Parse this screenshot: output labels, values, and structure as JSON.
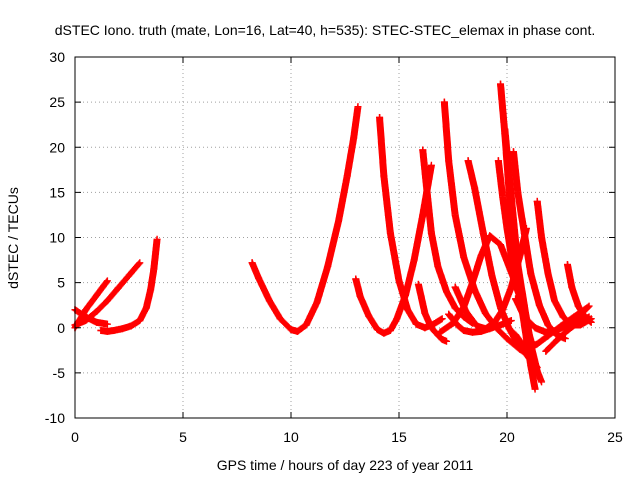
{
  "chart_data": {
    "type": "scatter",
    "title": "dSTEC Iono. truth (mate, Lon=16, Lat=40, h=535): STEC-STEC_elemax in phase cont.",
    "xlabel": "GPS time / hours of day 223 of year 2011",
    "ylabel": "dSTEC  / TECUs",
    "xlim": [
      0,
      25
    ],
    "ylim": [
      -10,
      30
    ],
    "xticks": [
      0,
      5,
      10,
      15,
      20,
      25
    ],
    "yticks": [
      -10,
      -5,
      0,
      5,
      10,
      15,
      20,
      25,
      30
    ],
    "grid": true,
    "legend": "none",
    "marker": "+",
    "color": "#ff0000",
    "series": [
      {
        "x": [
          0.0,
          0.5,
          1.0,
          1.5
        ],
        "y": [
          2.0,
          1.2,
          0.6,
          0.4
        ]
      },
      {
        "x": [
          0.0,
          0.5,
          1.0,
          1.5
        ],
        "y": [
          0.0,
          2.0,
          3.6,
          5.2
        ]
      },
      {
        "x": [
          0.0,
          0.5,
          1.0,
          1.5,
          2.0,
          2.5,
          3.0
        ],
        "y": [
          0.3,
          0.8,
          1.8,
          3.0,
          4.4,
          5.8,
          7.2
        ]
      },
      {
        "x": [
          1.2,
          1.5,
          1.8,
          2.2,
          2.6,
          3.0,
          3.3,
          3.5,
          3.65,
          3.8
        ],
        "y": [
          -0.3,
          -0.4,
          -0.3,
          -0.1,
          0.2,
          0.8,
          2.2,
          4.2,
          6.5,
          9.8
        ]
      },
      {
        "x": [
          8.2,
          8.5,
          9.0,
          9.5,
          10.0,
          10.3,
          10.7,
          11.2,
          11.7,
          12.2,
          12.6,
          12.9,
          13.1
        ],
        "y": [
          7.2,
          5.5,
          3.0,
          1.0,
          -0.2,
          -0.4,
          0.3,
          2.8,
          6.8,
          11.8,
          16.8,
          21.0,
          24.5
        ]
      },
      {
        "x": [
          13.0,
          13.2,
          13.6,
          14.0,
          14.3,
          14.6,
          14.9,
          15.3,
          15.7,
          16.1,
          16.5
        ],
        "y": [
          5.4,
          3.5,
          1.3,
          -0.2,
          -0.6,
          -0.3,
          1.0,
          3.6,
          7.5,
          12.5,
          18.0
        ]
      },
      {
        "x": [
          14.1,
          14.3,
          14.6,
          15.0,
          15.4,
          15.8,
          16.2,
          16.6,
          17.0
        ],
        "y": [
          23.3,
          16.8,
          10.5,
          5.2,
          2.0,
          0.4,
          0.0,
          0.4,
          1.0
        ]
      },
      {
        "x": [
          15.9,
          16.2,
          16.5,
          16.8,
          17.0,
          17.2
        ],
        "y": [
          4.8,
          1.6,
          0.0,
          -0.8,
          -1.3,
          -1.5
        ]
      },
      {
        "x": [
          16.1,
          16.3,
          16.5,
          16.8,
          17.2,
          17.6,
          18.0,
          18.4
        ],
        "y": [
          19.7,
          15.0,
          10.5,
          6.8,
          4.0,
          2.2,
          1.2,
          0.5
        ]
      },
      {
        "x": [
          16.9,
          17.5,
          18.0,
          18.4,
          18.8,
          19.2,
          19.7,
          20.3,
          20.7
        ],
        "y": [
          -0.5,
          0.5,
          2.3,
          5.0,
          8.0,
          10.2,
          9.2,
          5.5,
          2.6
        ]
      },
      {
        "x": [
          17.1,
          17.3,
          17.6,
          18.0,
          18.5,
          19.0,
          19.5,
          20.0,
          20.6,
          21.1
        ],
        "y": [
          25.0,
          18.5,
          12.5,
          7.8,
          4.2,
          1.6,
          0.0,
          -1.2,
          -2.4,
          -3.1
        ]
      },
      {
        "x": [
          17.3,
          17.7,
          18.0,
          18.4,
          18.8,
          19.2,
          19.7,
          20.2
        ],
        "y": [
          1.5,
          0.3,
          -0.3,
          -0.5,
          -0.4,
          -0.1,
          0.3,
          0.8
        ]
      },
      {
        "x": [
          18.2,
          18.5,
          18.9,
          19.3,
          19.7,
          20.1,
          20.5,
          21.0,
          21.4
        ],
        "y": [
          18.5,
          15.5,
          10.5,
          5.8,
          2.2,
          -0.1,
          -1.8,
          -3.3,
          -4.4
        ]
      },
      {
        "x": [
          17.6,
          18.1,
          18.6,
          19.0,
          19.4,
          19.8,
          20.2,
          20.6,
          20.9
        ],
        "y": [
          4.5,
          1.8,
          0.2,
          -0.1,
          0.5,
          2.0,
          4.5,
          8.0,
          11.0
        ]
      },
      {
        "x": [
          19.7,
          19.9,
          20.1,
          20.3,
          20.6,
          20.9,
          21.1,
          21.3
        ],
        "y": [
          27.0,
          21.5,
          15.0,
          9.0,
          3.5,
          -1.2,
          -4.2,
          -6.8
        ]
      },
      {
        "x": [
          19.9,
          20.1,
          20.3,
          20.5,
          20.8,
          21.1,
          21.4,
          21.6
        ],
        "y": [
          22.0,
          17.0,
          12.0,
          7.0,
          2.5,
          -1.8,
          -4.8,
          -6.0
        ]
      },
      {
        "x": [
          19.6,
          19.8,
          20.0,
          20.2,
          20.4,
          20.7,
          21.0,
          21.2
        ],
        "y": [
          18.5,
          14.5,
          11.0,
          8.0,
          5.5,
          2.5,
          -0.5,
          -2.2
        ]
      },
      {
        "x": [
          20.3,
          20.5,
          20.8,
          21.1,
          21.5,
          21.9,
          22.3,
          22.7
        ],
        "y": [
          19.5,
          15.0,
          10.5,
          6.0,
          2.5,
          0.3,
          -0.8,
          -1.2
        ]
      },
      {
        "x": [
          20.1,
          20.4,
          20.7,
          21.0,
          21.4,
          21.9,
          22.5,
          23.1,
          23.7
        ],
        "y": [
          -0.1,
          -0.8,
          -1.8,
          -2.2,
          -1.8,
          -0.9,
          0.2,
          1.2,
          2.2
        ]
      },
      {
        "x": [
          21.4,
          21.6,
          21.9,
          22.2,
          22.6,
          23.0,
          23.4,
          23.9
        ],
        "y": [
          14.0,
          10.0,
          6.0,
          3.0,
          1.2,
          0.3,
          0.3,
          1.0
        ]
      },
      {
        "x": [
          20.4,
          20.8,
          21.3,
          21.8,
          22.3,
          22.8,
          23.3,
          23.8
        ],
        "y": [
          3.2,
          1.2,
          0.0,
          -0.5,
          -0.3,
          0.3,
          1.2,
          2.4
        ]
      },
      {
        "x": [
          22.8,
          23.0,
          23.3,
          23.6,
          23.9
        ],
        "y": [
          7.0,
          4.5,
          2.4,
          1.2,
          0.6
        ]
      },
      {
        "x": [
          21.8,
          22.3,
          22.8,
          23.3,
          23.8
        ],
        "y": [
          -2.6,
          -1.4,
          -0.3,
          0.6,
          1.2
        ]
      }
    ]
  }
}
